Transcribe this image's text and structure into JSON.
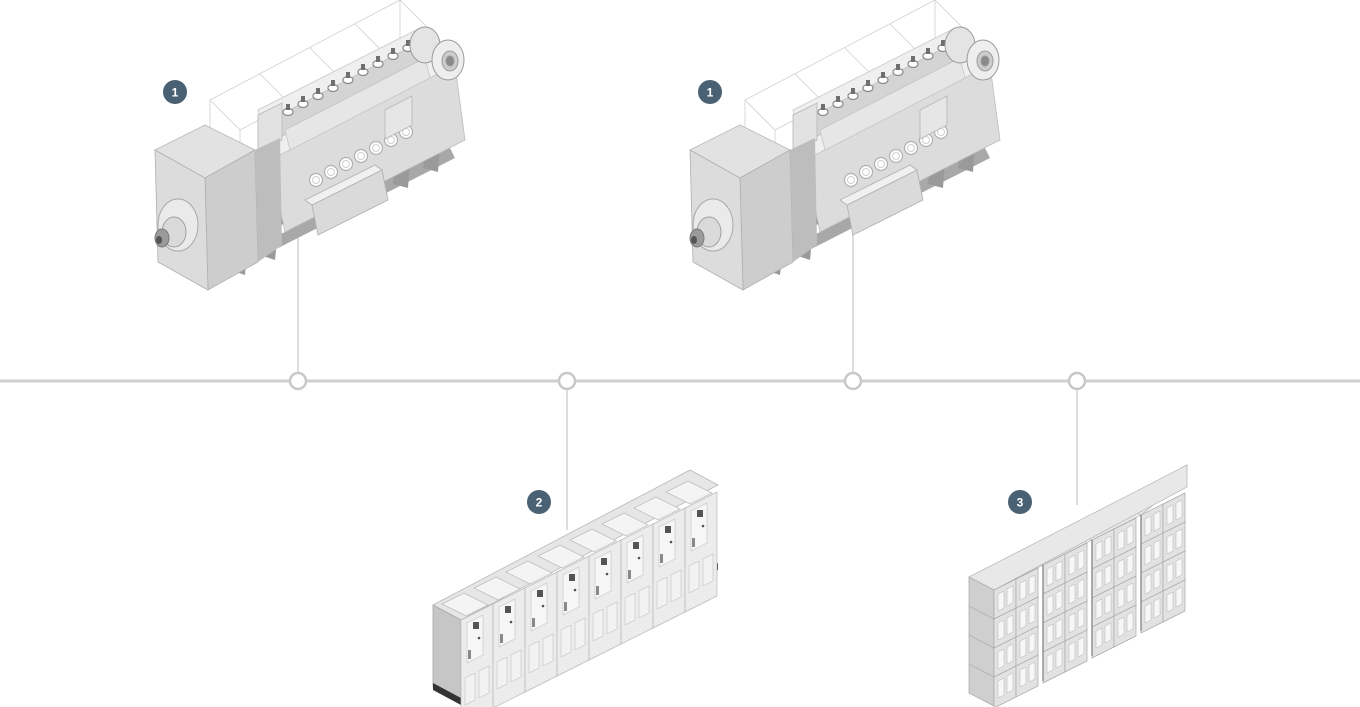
{
  "diagram": {
    "colors": {
      "bus_line": "#cfcfcf",
      "badge": "#4a6173",
      "badge_text": "#ffffff"
    },
    "nodes": [
      {
        "id": "genset-left",
        "type": "engine-generator",
        "badge": "1"
      },
      {
        "id": "genset-right",
        "type": "engine-generator",
        "badge": "1"
      },
      {
        "id": "switchboard",
        "type": "switchboard-cabinets",
        "badge": "2"
      },
      {
        "id": "battery-rack",
        "type": "battery-storage",
        "badge": "3"
      }
    ]
  }
}
